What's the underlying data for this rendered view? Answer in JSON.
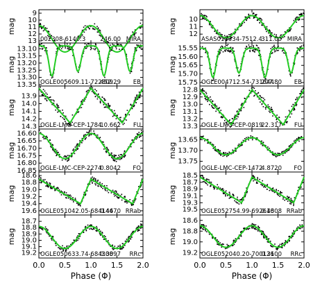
{
  "colors": {
    "points": "#000000",
    "fit": "#22cc22",
    "frame": "#000000"
  },
  "shared": {
    "xlabel": "Phase (Φ)",
    "ylabel": "mag",
    "xticks": [
      "0.0",
      "0.5",
      "1.0",
      "1.5",
      "2.0"
    ],
    "xlim": [
      0,
      2
    ]
  },
  "chart_data": [
    {
      "column": "left",
      "type": "scatter",
      "name": "002308-6140.3",
      "period": "246.00",
      "class": "MIRA",
      "ylim": [
        8.5,
        13.3
      ],
      "yticks": [
        "9",
        "10",
        "11",
        "12",
        "13"
      ],
      "series": [
        {
          "y0": 10.8,
          "amplitude": 3.8,
          "shape": "sine",
          "cycles": 1
        }
      ]
    },
    {
      "column": "left",
      "type": "scatter",
      "name": "OGLE005609.11-722809",
      "period": "452.29",
      "class": "EB",
      "ylim": [
        13.06,
        13.36
      ],
      "yticks": [
        "13.10",
        "13.15",
        "13.20",
        "13.25",
        "13.30",
        "13.35"
      ],
      "series": [
        {
          "y0": 13.08,
          "amplitude": 0.21,
          "shape": "eclipse",
          "cycles": 1
        }
      ]
    },
    {
      "column": "left",
      "type": "scatter",
      "name": "OGLE-LMC-CEP-1784",
      "period": "10.662",
      "class": "FU",
      "ylim": [
        13.77,
        14.33
      ],
      "yticks": [
        "13.9",
        "14.0",
        "14.1",
        "14.2",
        "14.3"
      ],
      "series": [
        {
          "y0": 13.8,
          "amplitude": 0.45,
          "shape": "cepheid",
          "cycles": 1
        }
      ]
    },
    {
      "column": "left",
      "type": "scatter",
      "name": "OGLE-LMC-CEP-2274",
      "period": "0.8042",
      "class": "FO",
      "ylim": [
        16.57,
        16.86
      ],
      "yticks": [
        "16.60",
        "16.65",
        "16.70",
        "16.75",
        "16.80",
        "16.85"
      ],
      "series": [
        {
          "y0": 16.6,
          "amplitude": 0.17,
          "shape": "sine",
          "cycles": 1
        }
      ]
    },
    {
      "column": "left",
      "type": "scatter",
      "name": "OGLE051042.05-684144",
      "period": "0.4670",
      "class": "RRab",
      "ylim": [
        18.5,
        19.72
      ],
      "yticks": [
        "18.6",
        "18.8",
        "19.0",
        "19.2",
        "19.4",
        "19.6"
      ],
      "series": [
        {
          "y0": 18.7,
          "amplitude": 0.7,
          "shape": "rrab",
          "cycles": 1
        }
      ]
    },
    {
      "column": "left",
      "type": "scatter",
      "name": "OGLE050633.74-684308",
      "period": "0.3097",
      "class": "RRc",
      "ylim": [
        18.6,
        19.28
      ],
      "yticks": [
        "18.7",
        "18.8",
        "18.9",
        "19.0",
        "19.1",
        "19.2"
      ],
      "series": [
        {
          "y0": 18.78,
          "amplitude": 0.35,
          "shape": "sine",
          "cycles": 1
        }
      ]
    },
    {
      "column": "right",
      "type": "scatter",
      "name": "ASAS013334-7512.4",
      "period": "311.00",
      "class": "MIRA",
      "ylim": [
        8.7,
        13.2
      ],
      "yticks": [
        "10",
        "11",
        "12"
      ],
      "series": [
        {
          "y0": 9.5,
          "amplitude": 3.0,
          "shape": "sine",
          "cycles": 1
        }
      ]
    },
    {
      "column": "right",
      "type": "scatter",
      "name": "OGLE004712.54-731644",
      "period": "207.80",
      "class": "EB",
      "ylim": [
        15.52,
        15.77
      ],
      "yticks": [
        "15.55",
        "15.60",
        "15.65",
        "15.70",
        "15.75"
      ],
      "series": [
        {
          "y0": 15.55,
          "amplitude": 0.17,
          "shape": "eclipse",
          "cycles": 1
        }
      ]
    },
    {
      "column": "right",
      "type": "scatter",
      "name": "OGLE-LMC-CEP-0819",
      "period": "22.317",
      "class": "FU",
      "ylim": [
        12.75,
        13.34
      ],
      "yticks": [
        "12.8",
        "12.9",
        "13.0",
        "13.1",
        "13.2",
        "13.3"
      ],
      "series": [
        {
          "y0": 12.8,
          "amplitude": 0.48,
          "shape": "cepheid",
          "cycles": 1
        }
      ]
    },
    {
      "column": "right",
      "type": "scatter",
      "name": "OGLE-LMC-CEP-1472",
      "period": "4.8720",
      "class": "FO",
      "ylim": [
        13.6,
        13.8
      ],
      "yticks": [
        "13.65",
        "13.70",
        "13.75"
      ],
      "series": [
        {
          "y0": 13.64,
          "amplitude": 0.08,
          "shape": "sine",
          "cycles": 1
        }
      ]
    },
    {
      "column": "right",
      "type": "scatter",
      "name": "OGLE052754.99-692616",
      "period": "0.4308",
      "class": "RRab",
      "ylim": [
        18.4,
        19.66
      ],
      "yticks": [
        "18.5",
        "18.7",
        "18.9",
        "19.1",
        "19.3",
        "19.5"
      ],
      "series": [
        {
          "y0": 18.55,
          "amplitude": 0.75,
          "shape": "rrab",
          "cycles": 1
        }
      ]
    },
    {
      "column": "right",
      "type": "scatter",
      "name": "OGLE052040.20-700126",
      "period": "0.3100",
      "class": "RRc",
      "ylim": [
        18.5,
        19.3
      ],
      "yticks": [
        "18.6",
        "18.8",
        "19.0",
        "19.2"
      ],
      "series": [
        {
          "y0": 18.7,
          "amplitude": 0.4,
          "shape": "sine",
          "cycles": 1
        }
      ]
    }
  ]
}
